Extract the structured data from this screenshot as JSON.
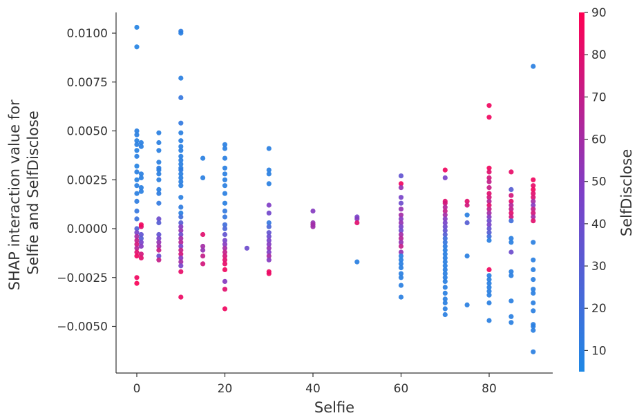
{
  "chart_data": {
    "type": "scatter",
    "xlabel": "Selfie",
    "ylabel_line1": "SHAP interaction value for",
    "ylabel_line2": "Selfie and SelfDisclose",
    "colorbar_label": "SelfDisclose",
    "xlim": [
      -5,
      95
    ],
    "ylim": [
      -0.0069,
      0.0108
    ],
    "x_ticks": [
      0,
      20,
      40,
      60,
      80
    ],
    "x_tick_labels": [
      "0",
      "20",
      "40",
      "60",
      "80"
    ],
    "y_ticks": [
      0.01,
      0.0075,
      0.005,
      0.0025,
      0.0,
      -0.0025,
      -0.005
    ],
    "y_tick_labels": [
      "0.0100",
      "0.0075",
      "0.0050",
      "0.0025",
      "0.0000",
      "−0.0025",
      "−0.0050"
    ],
    "color_range": [
      5,
      90
    ],
    "colorbar_ticks": [
      10,
      20,
      30,
      40,
      50,
      60,
      70,
      80,
      90
    ],
    "colorbar_tick_labels": [
      "10",
      "20",
      "30",
      "40",
      "50",
      "60",
      "70",
      "80",
      "90"
    ],
    "colors": {
      "low": "#1e88e5",
      "mid": "#7e3fc7",
      "high": "#ff0052"
    },
    "grid": false,
    "points": [
      [
        0,
        0.0103,
        8
      ],
      [
        0,
        0.0093,
        8
      ],
      [
        0,
        0.005,
        10
      ],
      [
        0,
        0.0048,
        10
      ],
      [
        0,
        0.0045,
        9
      ],
      [
        0,
        0.0043,
        10
      ],
      [
        0,
        0.004,
        9
      ],
      [
        0,
        0.0037,
        10
      ],
      [
        0,
        0.0032,
        8
      ],
      [
        0,
        0.0029,
        10
      ],
      [
        0,
        0.0025,
        9
      ],
      [
        0,
        0.0022,
        10
      ],
      [
        0,
        0.0018,
        10
      ],
      [
        0,
        0.0014,
        12
      ],
      [
        0,
        0.0009,
        15
      ],
      [
        0,
        0.0005,
        18
      ],
      [
        0,
        0.0,
        28
      ],
      [
        0,
        -0.0002,
        45
      ],
      [
        0,
        -0.0004,
        60
      ],
      [
        0,
        -0.0006,
        70
      ],
      [
        0,
        -0.0008,
        75
      ],
      [
        0,
        -0.001,
        65
      ],
      [
        0,
        -0.0012,
        80
      ],
      [
        0,
        -0.0014,
        85
      ],
      [
        0,
        -0.0025,
        85
      ],
      [
        0,
        -0.0028,
        88
      ],
      [
        1,
        0.0044,
        10
      ],
      [
        1,
        0.0042,
        10
      ],
      [
        1,
        0.0028,
        10
      ],
      [
        1,
        0.0026,
        10
      ],
      [
        1,
        0.0021,
        10
      ],
      [
        1,
        0.0019,
        10
      ],
      [
        1,
        0.0001,
        80
      ],
      [
        1,
        0.0002,
        85
      ],
      [
        1,
        -0.0003,
        35
      ],
      [
        1,
        -0.0005,
        30
      ],
      [
        1,
        -0.0007,
        45
      ],
      [
        1,
        -0.0009,
        50
      ],
      [
        1,
        -0.0013,
        75
      ],
      [
        1,
        -0.0015,
        80
      ],
      [
        5,
        0.0049,
        10
      ],
      [
        5,
        0.0044,
        10
      ],
      [
        5,
        0.004,
        10
      ],
      [
        5,
        0.0034,
        10
      ],
      [
        5,
        0.0031,
        12
      ],
      [
        5,
        0.003,
        10
      ],
      [
        5,
        0.0028,
        10
      ],
      [
        5,
        0.0025,
        10
      ],
      [
        5,
        0.002,
        10
      ],
      [
        5,
        0.0018,
        12
      ],
      [
        5,
        0.0013,
        14
      ],
      [
        5,
        0.0005,
        40
      ],
      [
        5,
        0.0003,
        30
      ],
      [
        5,
        -0.0003,
        35
      ],
      [
        5,
        -0.0005,
        45
      ],
      [
        5,
        -0.0007,
        55
      ],
      [
        5,
        -0.0009,
        60
      ],
      [
        5,
        -0.0011,
        72
      ],
      [
        5,
        -0.0014,
        40
      ],
      [
        5,
        -0.0016,
        70
      ],
      [
        10,
        0.0101,
        12
      ],
      [
        10,
        0.01,
        10
      ],
      [
        10,
        0.0077,
        10
      ],
      [
        10,
        0.0067,
        15
      ],
      [
        10,
        0.0054,
        14
      ],
      [
        10,
        0.0049,
        10
      ],
      [
        10,
        0.0045,
        10
      ],
      [
        10,
        0.0042,
        10
      ],
      [
        10,
        0.004,
        10
      ],
      [
        10,
        0.0037,
        10
      ],
      [
        10,
        0.0035,
        10
      ],
      [
        10,
        0.0033,
        10
      ],
      [
        10,
        0.0031,
        10
      ],
      [
        10,
        0.003,
        12
      ],
      [
        10,
        0.0028,
        10
      ],
      [
        10,
        0.0026,
        10
      ],
      [
        10,
        0.0024,
        10
      ],
      [
        10,
        0.0022,
        10
      ],
      [
        10,
        0.0016,
        10
      ],
      [
        10,
        0.0011,
        12
      ],
      [
        10,
        0.0008,
        10
      ],
      [
        10,
        0.0006,
        20
      ],
      [
        10,
        0.0003,
        30
      ],
      [
        10,
        0.0001,
        50
      ],
      [
        10,
        -0.0001,
        55
      ],
      [
        10,
        -0.0003,
        40
      ],
      [
        10,
        -0.0005,
        60
      ],
      [
        10,
        -0.0007,
        65
      ],
      [
        10,
        -0.0009,
        45
      ],
      [
        10,
        -0.0011,
        70
      ],
      [
        10,
        -0.0013,
        75
      ],
      [
        10,
        -0.0015,
        50
      ],
      [
        10,
        -0.0017,
        60
      ],
      [
        10,
        -0.0019,
        45
      ],
      [
        10,
        -0.0022,
        82
      ],
      [
        10,
        -0.0035,
        84
      ],
      [
        15,
        0.0036,
        10
      ],
      [
        15,
        0.0026,
        10
      ],
      [
        15,
        -0.0003,
        80
      ],
      [
        15,
        -0.0009,
        60
      ],
      [
        15,
        -0.0011,
        55
      ],
      [
        15,
        -0.0014,
        70
      ],
      [
        15,
        -0.0018,
        75
      ],
      [
        20,
        0.0043,
        10
      ],
      [
        20,
        0.0041,
        10
      ],
      [
        20,
        0.0036,
        10
      ],
      [
        20,
        0.0031,
        10
      ],
      [
        20,
        0.0028,
        10
      ],
      [
        20,
        0.0025,
        10
      ],
      [
        20,
        0.0022,
        10
      ],
      [
        20,
        0.0018,
        10
      ],
      [
        20,
        0.0013,
        10
      ],
      [
        20,
        0.0009,
        14
      ],
      [
        20,
        0.0006,
        15
      ],
      [
        20,
        0.0002,
        20
      ],
      [
        20,
        0.0,
        25
      ],
      [
        20,
        -0.0003,
        35
      ],
      [
        20,
        -0.0006,
        45
      ],
      [
        20,
        -0.0008,
        50
      ],
      [
        20,
        -0.001,
        60
      ],
      [
        20,
        -0.0012,
        70
      ],
      [
        20,
        -0.0014,
        75
      ],
      [
        20,
        -0.0016,
        80
      ],
      [
        20,
        -0.0018,
        82
      ],
      [
        20,
        -0.0021,
        85
      ],
      [
        20,
        -0.0027,
        50
      ],
      [
        20,
        -0.0031,
        80
      ],
      [
        20,
        -0.0041,
        85
      ],
      [
        25,
        -0.001,
        40
      ],
      [
        30,
        0.0041,
        10
      ],
      [
        30,
        0.003,
        10
      ],
      [
        30,
        0.0028,
        10
      ],
      [
        30,
        0.0023,
        10
      ],
      [
        30,
        0.0012,
        48
      ],
      [
        30,
        0.0008,
        42
      ],
      [
        30,
        0.0003,
        15
      ],
      [
        30,
        0.0001,
        25
      ],
      [
        30,
        -0.0002,
        35
      ],
      [
        30,
        -0.0004,
        40
      ],
      [
        30,
        -0.0006,
        45
      ],
      [
        30,
        -0.0008,
        50
      ],
      [
        30,
        -0.001,
        55
      ],
      [
        30,
        -0.0012,
        48
      ],
      [
        30,
        -0.0014,
        60
      ],
      [
        30,
        -0.0016,
        50
      ],
      [
        30,
        -0.0022,
        84
      ],
      [
        30,
        -0.0023,
        84
      ],
      [
        40,
        0.0009,
        50
      ],
      [
        40,
        0.0003,
        55
      ],
      [
        40,
        0.0002,
        60
      ],
      [
        40,
        0.0001,
        58
      ],
      [
        50,
        0.0006,
        45
      ],
      [
        50,
        0.0005,
        50
      ],
      [
        50,
        0.0003,
        80
      ],
      [
        50,
        -0.0017,
        10
      ],
      [
        60,
        0.0027,
        35
      ],
      [
        60,
        0.0023,
        85
      ],
      [
        60,
        0.0021,
        55
      ],
      [
        60,
        0.0016,
        45
      ],
      [
        60,
        0.0013,
        40
      ],
      [
        60,
        0.001,
        55
      ],
      [
        60,
        0.0007,
        60
      ],
      [
        60,
        0.0005,
        50
      ],
      [
        60,
        0.0003,
        55
      ],
      [
        60,
        0.0001,
        45
      ],
      [
        60,
        -0.0001,
        40
      ],
      [
        60,
        -0.0003,
        60
      ],
      [
        60,
        -0.0005,
        65
      ],
      [
        60,
        -0.0007,
        55
      ],
      [
        60,
        -0.0009,
        70
      ],
      [
        60,
        -0.0012,
        55
      ],
      [
        60,
        -0.0014,
        10
      ],
      [
        60,
        -0.0016,
        10
      ],
      [
        60,
        -0.0018,
        10
      ],
      [
        60,
        -0.002,
        10
      ],
      [
        60,
        -0.0023,
        10
      ],
      [
        60,
        -0.0025,
        10
      ],
      [
        60,
        -0.0029,
        10
      ],
      [
        60,
        -0.0035,
        10
      ],
      [
        70,
        0.003,
        85
      ],
      [
        70,
        0.0026,
        45
      ],
      [
        70,
        0.0014,
        80
      ],
      [
        70,
        0.0013,
        75
      ],
      [
        70,
        0.0011,
        65
      ],
      [
        70,
        0.0009,
        70
      ],
      [
        70,
        0.0007,
        60
      ],
      [
        70,
        0.0005,
        50
      ],
      [
        70,
        0.0003,
        45
      ],
      [
        70,
        0.0001,
        40
      ],
      [
        70,
        -0.0001,
        35
      ],
      [
        70,
        -0.0003,
        30
      ],
      [
        70,
        -0.0005,
        20
      ],
      [
        70,
        -0.0007,
        15
      ],
      [
        70,
        -0.0009,
        12
      ],
      [
        70,
        -0.0011,
        10
      ],
      [
        70,
        -0.0013,
        10
      ],
      [
        70,
        -0.0015,
        10
      ],
      [
        70,
        -0.0017,
        10
      ],
      [
        70,
        -0.0019,
        10
      ],
      [
        70,
        -0.0021,
        10
      ],
      [
        70,
        -0.0023,
        10
      ],
      [
        70,
        -0.0025,
        10
      ],
      [
        70,
        -0.0027,
        10
      ],
      [
        70,
        -0.003,
        10
      ],
      [
        70,
        -0.0033,
        10
      ],
      [
        70,
        -0.0036,
        10
      ],
      [
        70,
        -0.0038,
        10
      ],
      [
        70,
        -0.0041,
        10
      ],
      [
        70,
        -0.0044,
        10
      ],
      [
        75,
        0.0014,
        80
      ],
      [
        75,
        0.0012,
        75
      ],
      [
        75,
        0.0007,
        10
      ],
      [
        75,
        0.0003,
        30
      ],
      [
        75,
        -0.0014,
        10
      ],
      [
        75,
        -0.0039,
        10
      ],
      [
        80,
        0.0063,
        85
      ],
      [
        80,
        0.0057,
        85
      ],
      [
        80,
        0.0031,
        85
      ],
      [
        80,
        0.0029,
        80
      ],
      [
        80,
        0.0026,
        75
      ],
      [
        80,
        0.0024,
        70
      ],
      [
        80,
        0.0021,
        72
      ],
      [
        80,
        0.0018,
        80
      ],
      [
        80,
        0.0016,
        75
      ],
      [
        80,
        0.0014,
        65
      ],
      [
        80,
        0.0012,
        80
      ],
      [
        80,
        0.001,
        70
      ],
      [
        80,
        0.0008,
        60
      ],
      [
        80,
        0.0006,
        50
      ],
      [
        80,
        0.0004,
        40
      ],
      [
        80,
        0.0002,
        45
      ],
      [
        80,
        0.0,
        35
      ],
      [
        80,
        -0.0002,
        30
      ],
      [
        80,
        -0.0004,
        20
      ],
      [
        80,
        -0.0006,
        10
      ],
      [
        80,
        -0.0021,
        85
      ],
      [
        80,
        -0.0024,
        10
      ],
      [
        80,
        -0.0026,
        10
      ],
      [
        80,
        -0.0028,
        10
      ],
      [
        80,
        -0.003,
        10
      ],
      [
        80,
        -0.0032,
        10
      ],
      [
        80,
        -0.0034,
        10
      ],
      [
        80,
        -0.0038,
        10
      ],
      [
        80,
        -0.0047,
        10
      ],
      [
        85,
        0.0029,
        82
      ],
      [
        85,
        0.002,
        30
      ],
      [
        85,
        0.0017,
        75
      ],
      [
        85,
        0.0014,
        80
      ],
      [
        85,
        0.0012,
        65
      ],
      [
        85,
        0.001,
        70
      ],
      [
        85,
        0.0008,
        80
      ],
      [
        85,
        0.0006,
        75
      ],
      [
        85,
        0.0004,
        20
      ],
      [
        85,
        -0.0005,
        10
      ],
      [
        85,
        -0.0007,
        10
      ],
      [
        85,
        -0.0012,
        40
      ],
      [
        85,
        -0.0022,
        10
      ],
      [
        85,
        -0.0024,
        10
      ],
      [
        85,
        -0.0037,
        10
      ],
      [
        85,
        -0.0045,
        10
      ],
      [
        85,
        -0.0048,
        10
      ],
      [
        90,
        0.0083,
        10
      ],
      [
        90,
        0.0025,
        85
      ],
      [
        90,
        0.0022,
        82
      ],
      [
        90,
        0.002,
        85
      ],
      [
        90,
        0.0018,
        80
      ],
      [
        90,
        0.0016,
        78
      ],
      [
        90,
        0.0014,
        60
      ],
      [
        90,
        0.0012,
        50
      ],
      [
        90,
        0.001,
        70
      ],
      [
        90,
        0.0008,
        75
      ],
      [
        90,
        0.0006,
        60
      ],
      [
        90,
        0.0004,
        80
      ],
      [
        90,
        -0.0007,
        10
      ],
      [
        90,
        -0.0016,
        10
      ],
      [
        90,
        -0.0021,
        10
      ],
      [
        90,
        -0.0026,
        10
      ],
      [
        90,
        -0.0031,
        10
      ],
      [
        90,
        -0.0033,
        10
      ],
      [
        90,
        -0.0038,
        10
      ],
      [
        90,
        -0.0042,
        10
      ],
      [
        90,
        -0.0049,
        10
      ],
      [
        90,
        -0.005,
        10
      ],
      [
        90,
        -0.0052,
        10
      ],
      [
        90,
        -0.0063,
        10
      ]
    ]
  }
}
